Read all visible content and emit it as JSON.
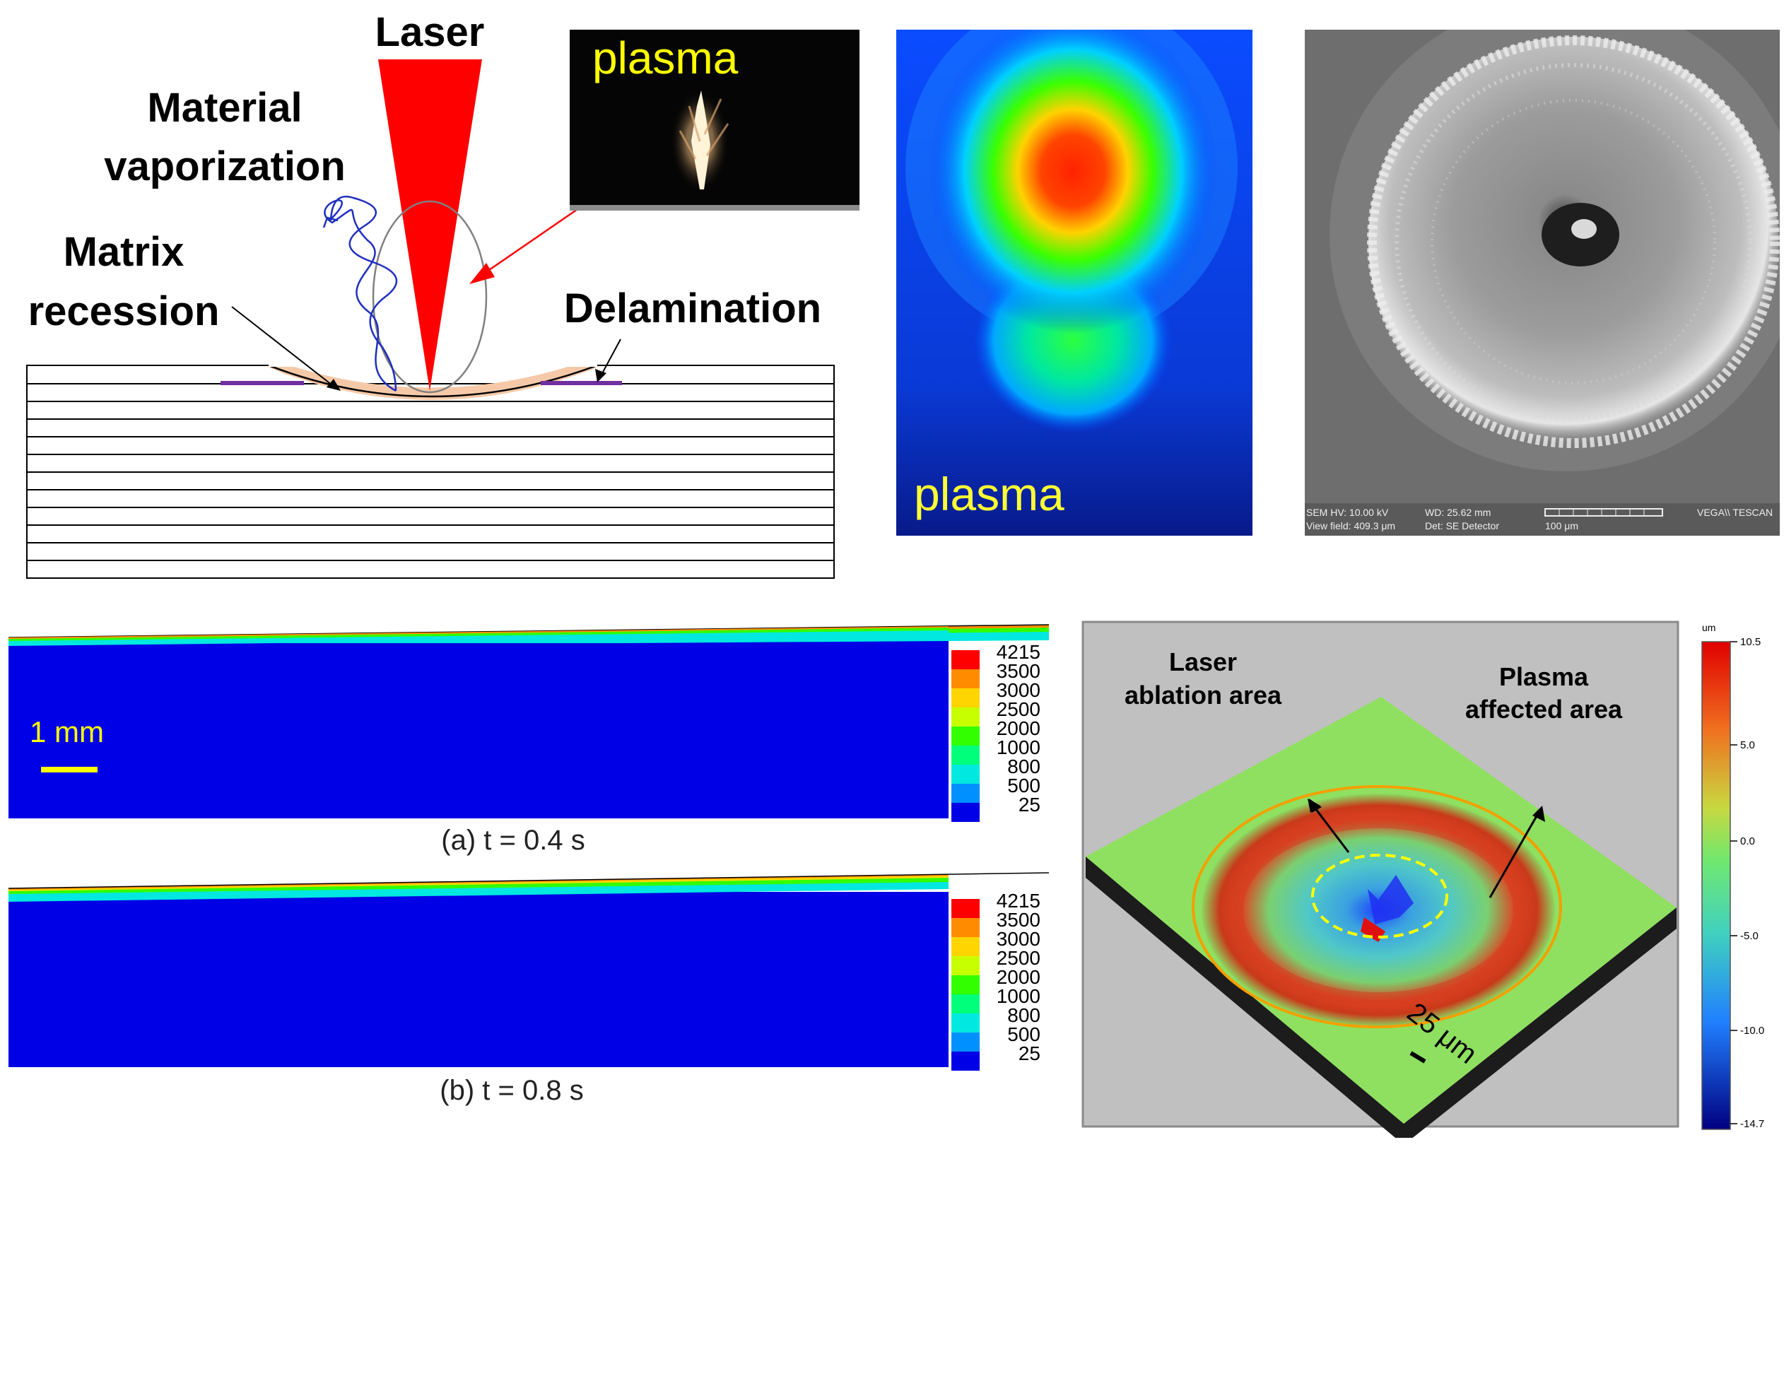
{
  "schematic": {
    "laser_label": "Laser",
    "vaporization_label_line1": "Material",
    "vaporization_label_line2": "vaporization",
    "recession_label_line1": "Matrix",
    "recession_label_line2": "recession",
    "delamination_label": "Delamination",
    "plasma_photo_label": "plasma"
  },
  "plasma_map": {
    "label": "plasma"
  },
  "sem": {
    "info_line1": "SEM HV: 10.00 kV",
    "info_line2": "View field: 409.3 μm",
    "wd_line1": "WD: 25.62 mm",
    "wd_line2": "Det: SE Detector",
    "scale_text": "100 μm",
    "brand": "VEGA\\\\ TESCAN"
  },
  "simulation": {
    "scale_label": "1 mm",
    "legend_values": [
      "4215",
      "3500",
      "3000",
      "2500",
      "2000",
      "1000",
      "800",
      "500",
      "25"
    ],
    "legend_colors": [
      "#ff0000",
      "#ff8c00",
      "#ffd500",
      "#c8ff00",
      "#32ff00",
      "#00ff7a",
      "#00e8e0",
      "#0090ff",
      "#0000e6"
    ],
    "caption_a": "(a) t = 0.4 s",
    "caption_b": "(b) t = 0.8 s"
  },
  "profilometry": {
    "ablation_label_line1": "Laser",
    "ablation_label_line2": "ablation area",
    "plasma_label_line1": "Plasma",
    "plasma_label_line2": "affected area",
    "scale_label": "25 μm",
    "colorbar_unit": "um",
    "colorbar_ticks": [
      "10.5",
      "5.0",
      "0.0",
      "-5.0",
      "-10.0",
      "-14.7"
    ]
  }
}
